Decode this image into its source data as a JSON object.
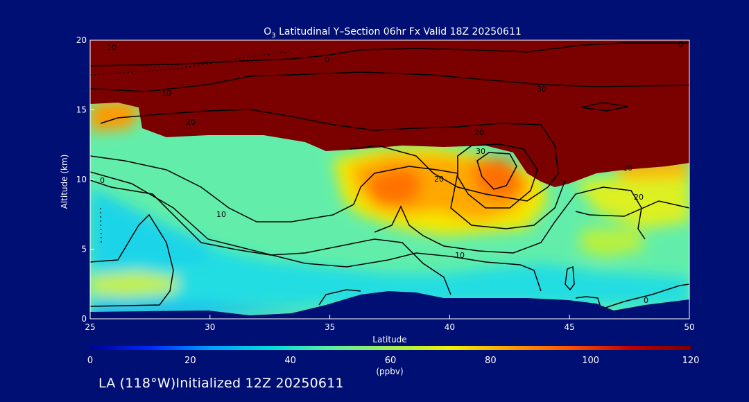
{
  "chart_data": {
    "type": "heatmap",
    "title_parts": [
      "O",
      "3",
      " Latitudinal Y–Section 06hr  Fx Valid 18Z 20250611"
    ],
    "xlabel": "Latitude",
    "ylabel": "Altitude (km)",
    "xlim": [
      25,
      50
    ],
    "ylim": [
      0,
      20
    ],
    "x_ticks": [
      25,
      30,
      35,
      40,
      45,
      50
    ],
    "y_ticks": [
      0,
      5,
      10,
      15,
      20
    ],
    "colorbar": {
      "range": [
        0,
        120
      ],
      "ticks": [
        0,
        20,
        40,
        60,
        80,
        100,
        120
      ],
      "unit_label": "(ppbv)",
      "colors": [
        "#000096",
        "#0028ff",
        "#00a0ff",
        "#00dcdc",
        "#5cf0a0",
        "#a0f050",
        "#f0f000",
        "#ffa000",
        "#ff5000",
        "#c00000",
        "#7a0000"
      ]
    },
    "contour_labels": [
      "0",
      "0",
      "0",
      "10",
      "10",
      "10",
      "10",
      "20",
      "20",
      "20",
      "30",
      "30",
      "10",
      "0",
      "20"
    ],
    "mask_color": "#000f73"
  },
  "footer_text": "LA (118°W)Initialized 12Z 20250611"
}
